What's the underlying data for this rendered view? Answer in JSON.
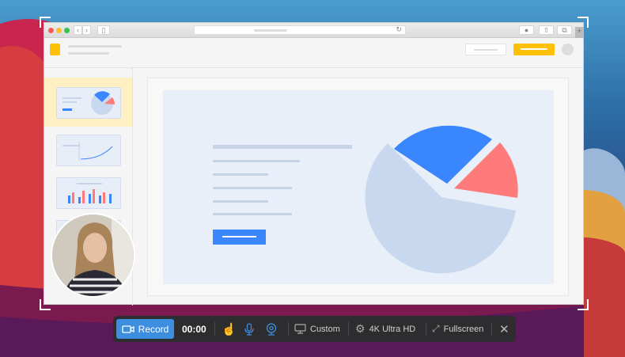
{
  "toolbar": {
    "record_label": "Record",
    "timer": "00:00",
    "area_label": "Custom",
    "quality_label": "4K Ultra HD",
    "fullscreen_label": "Fullscreen"
  },
  "colors": {
    "accent": "#3e8ee0",
    "brand": "#ffc107",
    "pie_blue": "#3a86ff",
    "pie_red": "#ff7a7a",
    "pie_light": "#c8d9ef"
  }
}
